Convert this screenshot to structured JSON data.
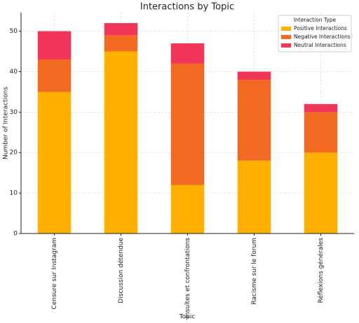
{
  "chart_data": {
    "type": "stacked-bar",
    "title": "Interactions by Topic",
    "x_label": "Topic",
    "y_label": "Number of Interactions",
    "categories": [
      "Censure sur Instagram",
      "Discussion détendue",
      "Insultes et confrontations",
      "Racisme sur le forum",
      "Réflexions générales"
    ],
    "series": [
      {
        "name": "Positive Interactions",
        "color": "#ffb000",
        "values": [
          35,
          45,
          12,
          18,
          20
        ]
      },
      {
        "name": "Negative Interactions",
        "color": "#f26a21",
        "values": [
          8,
          4,
          30,
          20,
          10
        ]
      },
      {
        "name": "Neutral Interactions",
        "color": "#f2365a",
        "values": [
          7,
          3,
          5,
          2,
          2
        ]
      }
    ],
    "legend_title": "Interaction Type",
    "legend": "upper right",
    "ylim": [
      0,
      54.6
    ],
    "yticks": [
      0,
      10,
      20,
      30,
      40,
      50
    ],
    "grid": true
  }
}
